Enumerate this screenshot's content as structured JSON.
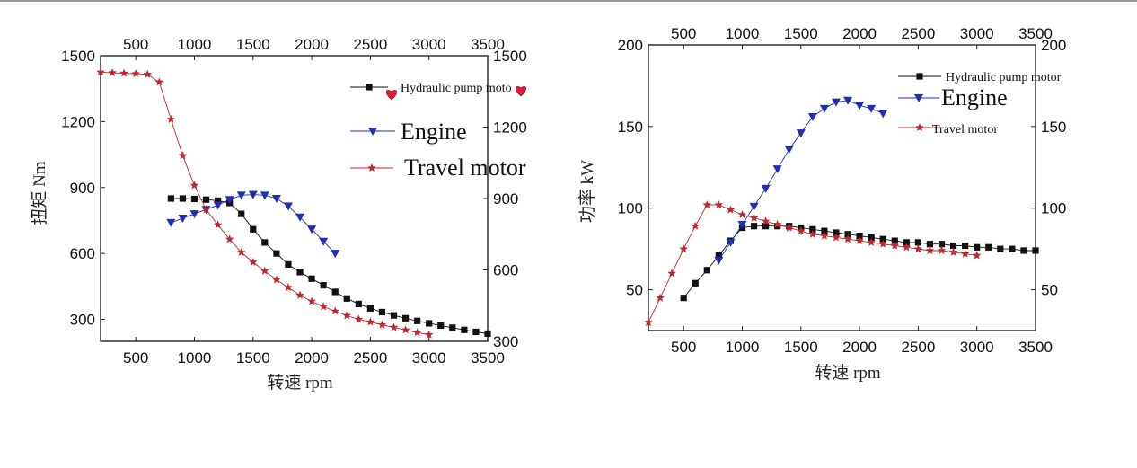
{
  "chart_data": [
    {
      "type": "line",
      "xlabel": "转速 rpm",
      "ylabel": "扭矩 Nm",
      "xlim": [
        200,
        3500
      ],
      "ylim": [
        200,
        1500
      ],
      "y2lim": [
        300,
        1500
      ],
      "x_ticks_bottom": [
        500,
        1000,
        1500,
        2000,
        2500,
        3000,
        3500
      ],
      "x_ticks_top": [
        500,
        1000,
        1500,
        2000,
        2500,
        3000,
        3500
      ],
      "y_ticks_left": [
        300,
        600,
        900,
        1200,
        1500
      ],
      "y_ticks_right": [
        600,
        900,
        1200,
        1500
      ],
      "y_ticks_right_bottom": 300,
      "grid": false,
      "legend_position": "top-right",
      "series": [
        {
          "name": "Hydraulic pump moto",
          "marker": "square",
          "color": "#111111",
          "x": [
            800,
            900,
            1000,
            1100,
            1200,
            1300,
            1400,
            1500,
            1600,
            1700,
            1800,
            1900,
            2000,
            2100,
            2200,
            2300,
            2400,
            2500,
            2600,
            2700,
            2800,
            2900,
            3000,
            3100,
            3200,
            3300,
            3400,
            3500
          ],
          "y": [
            850,
            850,
            848,
            845,
            840,
            830,
            780,
            710,
            650,
            600,
            550,
            515,
            485,
            455,
            425,
            395,
            370,
            350,
            333,
            318,
            305,
            293,
            282,
            272,
            262,
            252,
            243,
            235
          ]
        },
        {
          "name": "Engine",
          "marker": "triangle-down",
          "color": "#1f2fb3",
          "x": [
            800,
            900,
            1000,
            1100,
            1200,
            1300,
            1400,
            1500,
            1600,
            1700,
            1800,
            1900,
            2000,
            2100,
            2200
          ],
          "y": [
            740,
            760,
            780,
            800,
            820,
            845,
            865,
            868,
            865,
            850,
            815,
            765,
            710,
            655,
            600
          ]
        },
        {
          "name": "Travel motor",
          "marker": "star",
          "color": "#c0282d",
          "x": [
            200,
            300,
            400,
            500,
            600,
            700,
            800,
            900,
            1000,
            1100,
            1200,
            1300,
            1400,
            1500,
            1600,
            1700,
            1800,
            1900,
            2000,
            2100,
            2200,
            2300,
            2400,
            2500,
            2600,
            2700,
            2800,
            2900,
            3000
          ],
          "y": [
            1425,
            1422,
            1420,
            1418,
            1415,
            1380,
            1210,
            1045,
            910,
            800,
            730,
            665,
            605,
            560,
            520,
            480,
            445,
            410,
            382,
            358,
            337,
            317,
            300,
            288,
            275,
            263,
            252,
            240,
            230
          ]
        }
      ],
      "legend_decoration": "heart"
    },
    {
      "type": "line",
      "xlabel": "转速 rpm",
      "ylabel": "功率 kW",
      "xlim": [
        200,
        3500
      ],
      "ylim": [
        25,
        200
      ],
      "x_ticks_bottom": [
        500,
        1000,
        1500,
        2000,
        2500,
        3000,
        3500
      ],
      "x_ticks_top": [
        500,
        1000,
        1500,
        2000,
        2500,
        3000,
        3500
      ],
      "y_ticks_left": [
        50,
        100,
        150,
        200
      ],
      "y_ticks_right": [
        50,
        100,
        150,
        200
      ],
      "grid": false,
      "legend_position": "top-right",
      "series": [
        {
          "name": "Hydraulic pump motor",
          "marker": "square",
          "color": "#111111",
          "x": [
            500,
            600,
            700,
            800,
            900,
            1000,
            1100,
            1200,
            1300,
            1400,
            1500,
            1600,
            1700,
            1800,
            1900,
            2000,
            2100,
            2200,
            2300,
            2400,
            2500,
            2600,
            2700,
            2800,
            2900,
            3000,
            3100,
            3200,
            3300,
            3400,
            3500
          ],
          "y": [
            45,
            54,
            62,
            71,
            80,
            88,
            89,
            89,
            89,
            89,
            88,
            87,
            86,
            85,
            84,
            83,
            82,
            81,
            80,
            79,
            79,
            78,
            78,
            77,
            77,
            76,
            76,
            75,
            75,
            74,
            74
          ]
        },
        {
          "name": "Engine",
          "marker": "triangle-down",
          "color": "#1f2fb3",
          "x": [
            800,
            900,
            1000,
            1100,
            1200,
            1300,
            1400,
            1500,
            1600,
            1700,
            1800,
            1900,
            2000,
            2100,
            2200
          ],
          "y": [
            68,
            79,
            90,
            101,
            112,
            124,
            136,
            146,
            156,
            161,
            165,
            166,
            163,
            161,
            158
          ]
        },
        {
          "name": "Travel motor",
          "marker": "star",
          "color": "#c0282d",
          "x": [
            200,
            300,
            400,
            500,
            600,
            700,
            800,
            900,
            1000,
            1100,
            1200,
            1300,
            1400,
            1500,
            1600,
            1700,
            1800,
            1900,
            2000,
            2100,
            2200,
            2300,
            2400,
            2500,
            2600,
            2700,
            2800,
            2900,
            3000
          ],
          "y": [
            30,
            45,
            60,
            75,
            89,
            102,
            102,
            99,
            96,
            94,
            92,
            90,
            88,
            86,
            84,
            83,
            82,
            81,
            80,
            79,
            78,
            77,
            76,
            75,
            74,
            74,
            73,
            72,
            71
          ]
        }
      ]
    }
  ]
}
